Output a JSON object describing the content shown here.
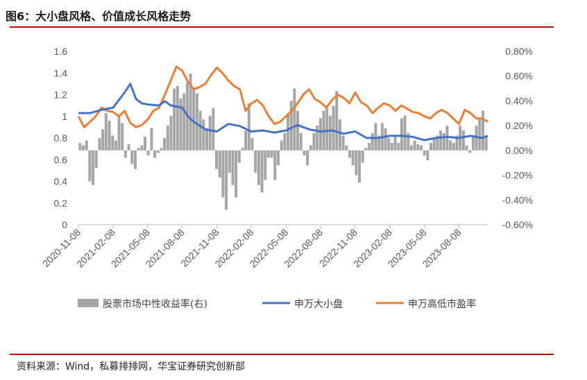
{
  "header": {
    "title": "图6：大小盘风格、价值成长风格走势"
  },
  "footer": {
    "source": "资料来源：Wind，私募排排网，华宝证券研究创新部"
  },
  "colors": {
    "bars": "#a5a5a5",
    "size_line": "#4472c4",
    "pe_line": "#ed7d31",
    "rule": "#c00000"
  },
  "chart_data": {
    "type": "bar+line",
    "left_axis": {
      "ylim": [
        0,
        1.6
      ],
      "ticks": [
        "0",
        "0.2",
        "0.4",
        "0.6",
        "0.8",
        "1",
        "1.2",
        "1.4",
        "1.6"
      ]
    },
    "right_axis": {
      "ylim": [
        -0.6,
        0.8
      ],
      "unit": "%",
      "ticks": [
        "-0.60%",
        "-0.40%",
        "-0.20%",
        "0.00%",
        "0.20%",
        "0.40%",
        "0.60%",
        "0.80%"
      ]
    },
    "x_tick_labels": [
      "2020-11-08",
      "2021-02-08",
      "2021-05-08",
      "2021-08-08",
      "2021-11-08",
      "2022-02-08",
      "2022-05-08",
      "2022-08-08",
      "2022-11-08",
      "2023-02-08",
      "2023-05-08",
      "2023-08-08"
    ],
    "x_range_months": [
      0,
      35.5
    ],
    "legend": [
      "股票市场中性收益率(右)",
      "申万大小盘",
      "申万高低市盈率"
    ],
    "series": [
      {
        "name": "股票市场中性收益率(右)",
        "axis": "right",
        "type": "bar",
        "values": [
          0.06,
          0.04,
          0.08,
          -0.25,
          -0.28,
          -0.14,
          0.1,
          0.17,
          0.3,
          0.24,
          0.12,
          0.08,
          0.28,
          0.22,
          -0.06,
          0.05,
          -0.11,
          -0.15,
          0.02,
          0.04,
          0.11,
          -0.04,
          0.18,
          -0.06,
          -0.02,
          0.02,
          0.1,
          0.2,
          0.28,
          0.5,
          0.52,
          0.42,
          0.46,
          0.55,
          0.62,
          0.5,
          0.46,
          0.32,
          0.25,
          0.18,
          0.28,
          0.34,
          -0.15,
          -0.22,
          -0.38,
          -0.48,
          -0.18,
          -0.28,
          -0.38,
          -0.1,
          0.02,
          0.16,
          0.38,
          0.1,
          -0.18,
          -0.28,
          -0.34,
          -0.24,
          -0.06,
          -0.06,
          -0.24,
          -0.12,
          0.08,
          0.14,
          0.3,
          0.4,
          0.5,
          0.32,
          0.14,
          -0.04,
          -0.12,
          0.04,
          0.14,
          0.2,
          0.26,
          0.32,
          0.34,
          0.28,
          0.36,
          0.48,
          0.25,
          0.12,
          0.04,
          -0.06,
          -0.12,
          -0.2,
          -0.26,
          -0.1,
          0.02,
          0.06,
          0.14,
          0.22,
          0.12,
          0.22,
          0.18,
          0.1,
          0.06,
          0.12,
          0.06,
          0.26,
          0.28,
          0.14,
          0.04,
          0.08,
          0.05,
          0.04,
          -0.04,
          -0.08,
          0.06,
          0.1,
          0.12,
          0.16,
          0.14,
          0.2,
          0.08,
          0.06,
          0.12,
          0.2,
          0.16,
          0.04,
          -0.02,
          0.12,
          0.2,
          0.25,
          0.32,
          0.12
        ]
      },
      {
        "name": "申万大小盘",
        "axis": "left",
        "type": "line",
        "x": [
          0,
          1,
          2,
          3,
          3.5,
          4,
          4.5,
          5,
          5.5,
          6,
          7,
          7.5,
          8,
          9,
          9.5,
          10,
          11,
          12,
          13,
          14,
          15,
          16,
          17,
          18,
          19,
          20,
          21,
          22,
          23,
          24,
          25,
          26,
          27,
          28,
          29,
          30,
          31,
          32,
          33,
          34,
          35,
          35.5
        ],
        "values": [
          1.03,
          1.03,
          1.06,
          1.08,
          1.15,
          1.22,
          1.3,
          1.16,
          1.12,
          1.11,
          1.1,
          1.14,
          1.1,
          1.08,
          1.0,
          0.95,
          0.88,
          0.86,
          0.93,
          0.91,
          0.86,
          0.87,
          0.85,
          0.87,
          0.92,
          0.88,
          0.86,
          0.87,
          0.84,
          0.86,
          0.8,
          0.8,
          0.82,
          0.82,
          0.81,
          0.78,
          0.8,
          0.81,
          0.8,
          0.82,
          0.8,
          0.82
        ]
      },
      {
        "name": "申万高低市盈率",
        "axis": "left",
        "type": "line",
        "x": [
          0,
          0.5,
          1,
          1.5,
          2,
          2.5,
          3,
          3.5,
          4,
          4.5,
          5,
          5.5,
          6,
          6.5,
          7,
          7.5,
          8,
          8.5,
          9,
          9.5,
          10,
          10.5,
          11,
          11.5,
          12,
          12.5,
          13,
          13.5,
          14,
          14.5,
          15,
          15.5,
          16,
          16.5,
          17,
          17.5,
          18,
          18.5,
          19,
          19.5,
          20,
          20.5,
          21,
          21.5,
          22,
          22.5,
          23,
          23.5,
          24,
          24.5,
          25,
          25.5,
          26,
          26.5,
          27,
          27.5,
          28,
          28.5,
          29,
          29.5,
          30,
          30.5,
          31,
          31.5,
          32,
          32.5,
          33,
          33.5,
          34,
          34.5,
          35,
          35.5
        ],
        "values": [
          1.0,
          0.9,
          0.95,
          1.0,
          1.08,
          1.05,
          1.04,
          1.0,
          1.05,
          0.94,
          0.9,
          0.92,
          0.97,
          1.05,
          1.08,
          1.2,
          1.33,
          1.46,
          1.42,
          1.32,
          1.25,
          1.27,
          1.3,
          1.38,
          1.45,
          1.4,
          1.33,
          1.28,
          1.25,
          1.05,
          1.12,
          1.15,
          1.1,
          1.0,
          0.93,
          0.95,
          1.0,
          1.05,
          1.12,
          1.2,
          1.25,
          1.16,
          1.13,
          1.08,
          1.15,
          1.2,
          1.17,
          1.12,
          1.22,
          1.13,
          1.1,
          1.03,
          1.08,
          1.12,
          1.1,
          1.05,
          1.1,
          1.07,
          1.04,
          1.03,
          1.0,
          0.98,
          1.03,
          1.06,
          1.03,
          0.98,
          0.93,
          1.06,
          1.03,
          0.98,
          0.98,
          0.95
        ]
      }
    ]
  }
}
